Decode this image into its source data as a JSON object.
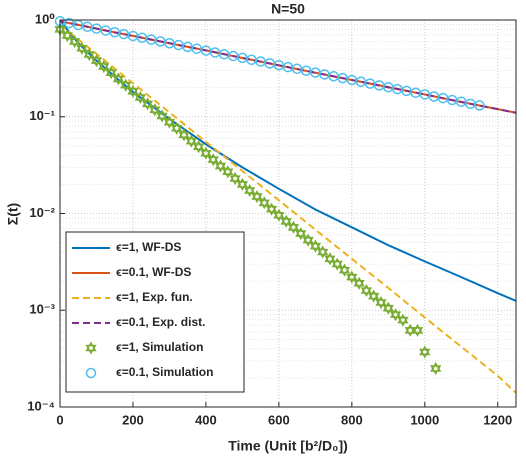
{
  "chart_data": {
    "type": "line",
    "title": "N=50",
    "x_label": "Time (Unit [b²/D₀])",
    "y_label": "Σ(t)",
    "log_y": true,
    "grid": true,
    "minor_grid": true,
    "legend": "southwest",
    "xlim": [
      0,
      1250
    ],
    "xticks": [
      0,
      200,
      400,
      600,
      800,
      1000,
      1200
    ],
    "ylim": [
      0.0001,
      1
    ],
    "yticks": [
      {
        "value": 0.0001,
        "label": "10⁻⁴"
      },
      {
        "value": 0.001,
        "label": "10⁻³"
      },
      {
        "value": 0.01,
        "label": "10⁻²"
      },
      {
        "value": 0.1,
        "label": "10⁻¹"
      },
      {
        "value": 1,
        "label": "10⁰"
      }
    ],
    "series": [
      {
        "name": "ϵ=1, WF-DS",
        "color": "#0072bd",
        "style": "solid",
        "x": [
          0,
          25,
          50,
          100,
          150,
          200,
          300,
          400,
          500,
          600,
          700,
          800,
          900,
          1000,
          1100,
          1200,
          1250
        ],
        "values": [
          1,
          0.75,
          0.58,
          0.38,
          0.26,
          0.18,
          0.095,
          0.052,
          0.03,
          0.018,
          0.011,
          0.0072,
          0.0047,
          0.0032,
          0.0022,
          0.0015,
          0.00125
        ]
      },
      {
        "name": "ϵ=0.1, WF-DS",
        "color": "#d95319",
        "style": "solid",
        "x": [
          0,
          25,
          50,
          100,
          150,
          200,
          300,
          400,
          500,
          600,
          700,
          800,
          900,
          1000,
          1100,
          1200,
          1250
        ],
        "values": [
          0.97,
          0.93,
          0.89,
          0.815,
          0.745,
          0.685,
          0.575,
          0.485,
          0.405,
          0.34,
          0.285,
          0.24,
          0.202,
          0.17,
          0.142,
          0.12,
          0.11
        ]
      },
      {
        "name": "ϵ=1, Exp. fun.",
        "color": "#edb120",
        "style": "dashed",
        "x": [
          0,
          25,
          50,
          100,
          150,
          200,
          300,
          400,
          500,
          600,
          700,
          800,
          900,
          1000,
          1100,
          1200,
          1250
        ],
        "values": [
          0.9,
          0.75,
          0.63,
          0.447,
          0.315,
          0.222,
          0.111,
          0.055,
          0.0275,
          0.0137,
          0.0068,
          0.0034,
          0.0017,
          0.00084,
          0.00042,
          0.00021,
          0.00014
        ]
      },
      {
        "name": "ϵ=0.1, Exp. dist.",
        "color": "#7e2f8e",
        "style": "dashed",
        "x": [
          0,
          25,
          50,
          100,
          150,
          200,
          300,
          400,
          500,
          600,
          700,
          800,
          900,
          1000,
          1100,
          1200,
          1250
        ],
        "values": [
          0.97,
          0.93,
          0.89,
          0.815,
          0.745,
          0.685,
          0.575,
          0.485,
          0.405,
          0.34,
          0.285,
          0.24,
          0.202,
          0.17,
          0.142,
          0.12,
          0.11
        ]
      },
      {
        "name": "ϵ=1, Simulation",
        "color": "#77ac30",
        "style": "markers",
        "marker": "hexagram",
        "x": [
          0,
          20,
          40,
          60,
          80,
          100,
          120,
          140,
          160,
          180,
          200,
          220,
          240,
          260,
          280,
          300,
          320,
          340,
          360,
          380,
          400,
          420,
          440,
          460,
          480,
          500,
          520,
          540,
          560,
          580,
          600,
          620,
          640,
          660,
          680,
          700,
          720,
          740,
          760,
          780,
          800,
          820,
          840,
          860,
          880,
          900,
          920,
          940,
          960,
          980,
          1000,
          1030
        ],
        "values": [
          0.8,
          0.69,
          0.6,
          0.51,
          0.44,
          0.38,
          0.33,
          0.285,
          0.246,
          0.212,
          0.183,
          0.158,
          0.136,
          0.118,
          0.102,
          0.088,
          0.076,
          0.065,
          0.056,
          0.049,
          0.042,
          0.036,
          0.031,
          0.027,
          0.023,
          0.02,
          0.0173,
          0.015,
          0.0129,
          0.0111,
          0.0096,
          0.0083,
          0.0072,
          0.0062,
          0.0053,
          0.0046,
          0.004,
          0.0034,
          0.003,
          0.0026,
          0.0022,
          0.0019,
          0.0016,
          0.0014,
          0.0012,
          0.00105,
          0.0009,
          0.00079,
          0.00062,
          0.00062,
          0.00037,
          0.00025
        ]
      },
      {
        "name": "ϵ=0.1, Simulation",
        "color": "#4dbeee",
        "style": "markers",
        "marker": "circle",
        "x": [
          0,
          25,
          50,
          75,
          100,
          125,
          150,
          175,
          200,
          225,
          250,
          275,
          300,
          325,
          350,
          375,
          400,
          425,
          450,
          475,
          500,
          525,
          550,
          575,
          600,
          625,
          650,
          675,
          700,
          725,
          750,
          775,
          800,
          825,
          850,
          875,
          900,
          925,
          950,
          975,
          1000,
          1025,
          1050,
          1075,
          1100,
          1125,
          1150
        ],
        "values": [
          0.97,
          0.929,
          0.889,
          0.851,
          0.815,
          0.78,
          0.747,
          0.715,
          0.684,
          0.655,
          0.627,
          0.601,
          0.575,
          0.551,
          0.527,
          0.505,
          0.483,
          0.462,
          0.443,
          0.424,
          0.406,
          0.388,
          0.372,
          0.356,
          0.341,
          0.326,
          0.313,
          0.299,
          0.286,
          0.274,
          0.262,
          0.251,
          0.24,
          0.23,
          0.22,
          0.211,
          0.202,
          0.193,
          0.185,
          0.177,
          0.17,
          0.162,
          0.156,
          0.149,
          0.143,
          0.136,
          0.131
        ]
      }
    ]
  }
}
